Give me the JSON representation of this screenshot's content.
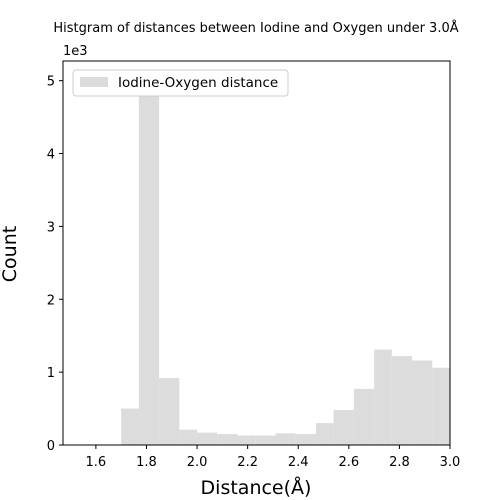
{
  "chart_data": {
    "type": "bar",
    "title": "Histgram of distances between Iodine and Oxygen under 3.0Å",
    "xlabel": "Distance(Å)",
    "ylabel": "Count",
    "y_multiplier_label": "1e3",
    "xlim": [
      1.47,
      3.0
    ],
    "ylim": [
      0,
      5.27
    ],
    "x_ticks": [
      "1.6",
      "1.8",
      "2.0",
      "2.2",
      "2.4",
      "2.6",
      "2.8",
      "3.0"
    ],
    "x_tick_values": [
      1.6,
      1.8,
      2.0,
      2.2,
      2.4,
      2.6,
      2.8,
      3.0
    ],
    "y_ticks": [
      "0",
      "1",
      "2",
      "3",
      "4",
      "5"
    ],
    "y_tick_values": [
      0,
      1,
      2,
      3,
      4,
      5
    ],
    "bin_edges": [
      1.7,
      1.77,
      1.85,
      1.93,
      2.0,
      2.08,
      2.16,
      2.23,
      2.31,
      2.39,
      2.47,
      2.54,
      2.62,
      2.7,
      2.77,
      2.85,
      2.93,
      3.0
    ],
    "series": [
      {
        "name": "Iodine-Oxygen distance",
        "values": [
          0.5,
          4.85,
          0.92,
          0.21,
          0.17,
          0.15,
          0.13,
          0.13,
          0.16,
          0.15,
          0.3,
          0.48,
          0.77,
          1.31,
          1.22,
          1.16,
          1.06
        ]
      }
    ],
    "grid": false,
    "legend_position": "top-left",
    "bar_color": "#dcdcdc"
  }
}
